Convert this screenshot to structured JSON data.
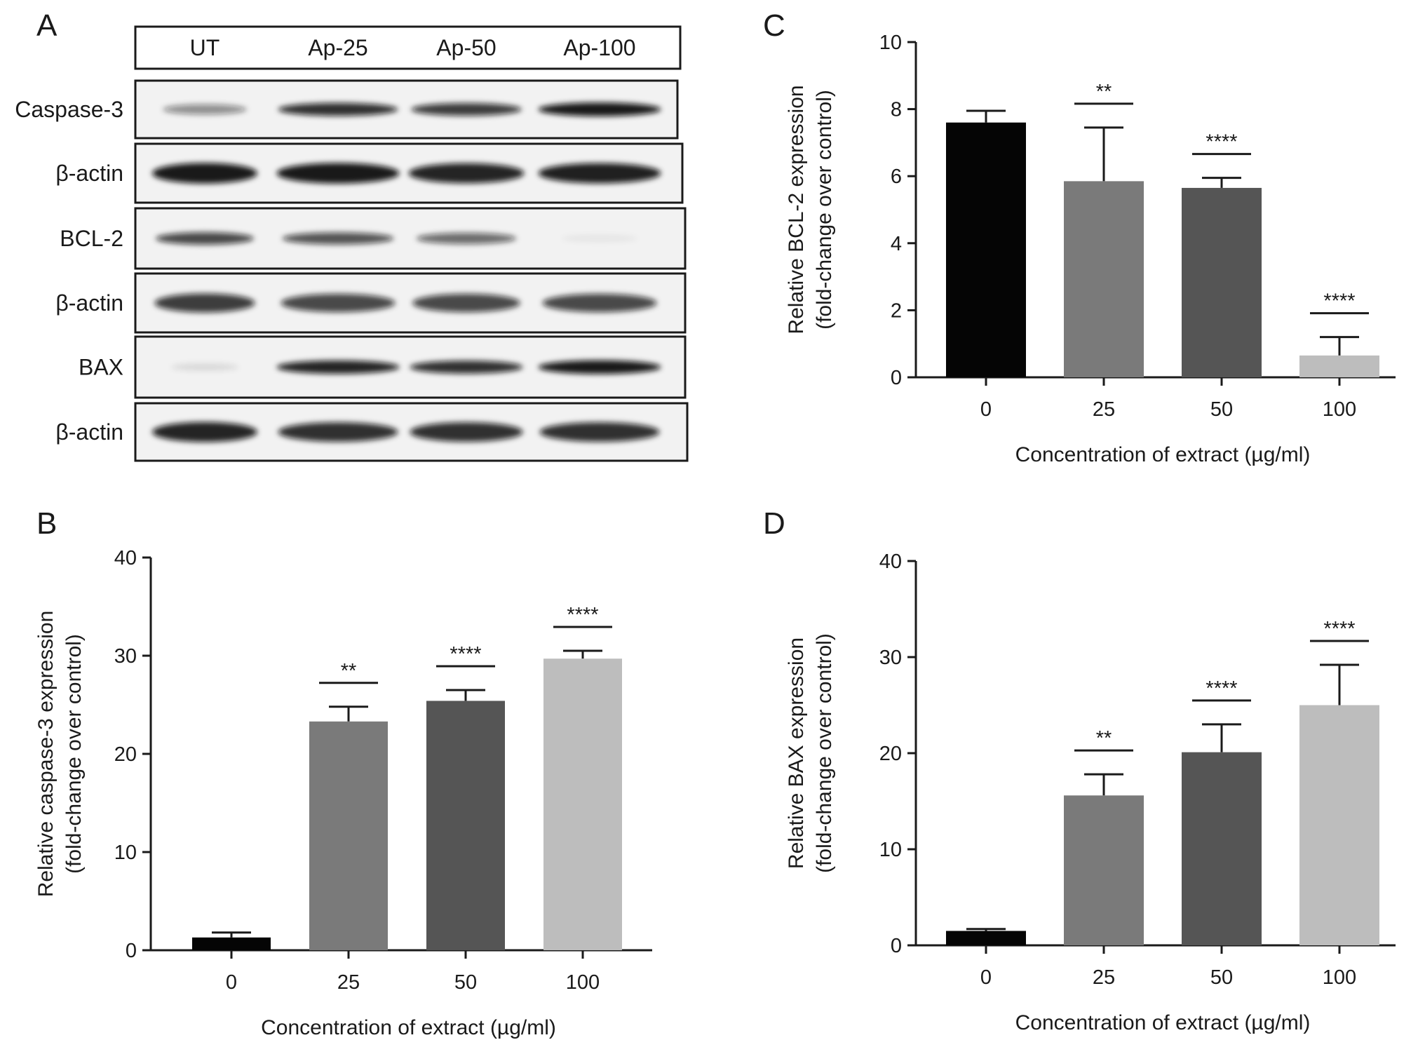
{
  "figure": {
    "panel_labels": [
      "A",
      "B",
      "C",
      "D"
    ]
  },
  "blot": {
    "lanes": [
      "UT",
      "Ap-25",
      "Ap-50",
      "Ap-100"
    ],
    "rows": [
      {
        "label": "Caspase-3",
        "intensities": [
          0.45,
          0.85,
          0.8,
          0.95
        ]
      },
      {
        "label": "β-actin",
        "intensities": [
          0.95,
          0.95,
          0.9,
          0.92
        ]
      },
      {
        "label": "BCL-2",
        "intensities": [
          0.75,
          0.7,
          0.6,
          0.05
        ]
      },
      {
        "label": "β-actin",
        "intensities": [
          0.8,
          0.75,
          0.75,
          0.75
        ]
      },
      {
        "label": "BAX",
        "intensities": [
          0.1,
          0.9,
          0.85,
          0.95
        ]
      },
      {
        "label": "β-actin",
        "intensities": [
          0.9,
          0.85,
          0.85,
          0.85
        ]
      }
    ]
  },
  "chart_data": [
    {
      "panel": "B",
      "type": "bar",
      "categories": [
        "0",
        "25",
        "50",
        "100"
      ],
      "values": [
        1.3,
        23.3,
        25.4,
        29.7
      ],
      "errors": [
        0.5,
        1.5,
        1.1,
        0.8
      ],
      "significance": [
        "",
        "**",
        "****",
        "****"
      ],
      "bar_colors": [
        "#050505",
        "#7a7a7a",
        "#555555",
        "#bdbdbd"
      ],
      "ylim": [
        0,
        40
      ],
      "yticks": [
        0,
        10,
        20,
        30,
        40
      ],
      "ylabel": [
        "Relative caspase-3 expression",
        "(fold-change over control)"
      ],
      "xlabel": "Concentration of extract (µg/ml)",
      "grid": false
    },
    {
      "panel": "C",
      "type": "bar",
      "categories": [
        "0",
        "25",
        "50",
        "100"
      ],
      "values": [
        7.6,
        5.85,
        5.65,
        0.65
      ],
      "errors": [
        0.35,
        1.6,
        0.3,
        0.55
      ],
      "significance": [
        "",
        "**",
        "****",
        "****"
      ],
      "bar_colors": [
        "#050505",
        "#7a7a7a",
        "#555555",
        "#bdbdbd"
      ],
      "ylim": [
        0,
        10
      ],
      "yticks": [
        0,
        2,
        4,
        6,
        8,
        10
      ],
      "ylabel": [
        "Relative BCL-2 expression",
        "(fold-change over control)"
      ],
      "xlabel": "Concentration of extract (µg/ml)",
      "grid": false
    },
    {
      "panel": "D",
      "type": "bar",
      "categories": [
        "0",
        "25",
        "50",
        "100"
      ],
      "values": [
        1.5,
        15.6,
        20.1,
        25.0
      ],
      "errors": [
        0.2,
        2.2,
        2.9,
        4.2
      ],
      "significance": [
        "",
        "**",
        "****",
        "****"
      ],
      "bar_colors": [
        "#050505",
        "#7a7a7a",
        "#555555",
        "#bdbdbd"
      ],
      "ylim": [
        0,
        40
      ],
      "yticks": [
        0,
        10,
        20,
        30,
        40
      ],
      "ylabel": [
        "Relative BAX expression",
        "(fold-change over control)"
      ],
      "xlabel": "Concentration of extract (µg/ml)",
      "grid": false
    }
  ]
}
